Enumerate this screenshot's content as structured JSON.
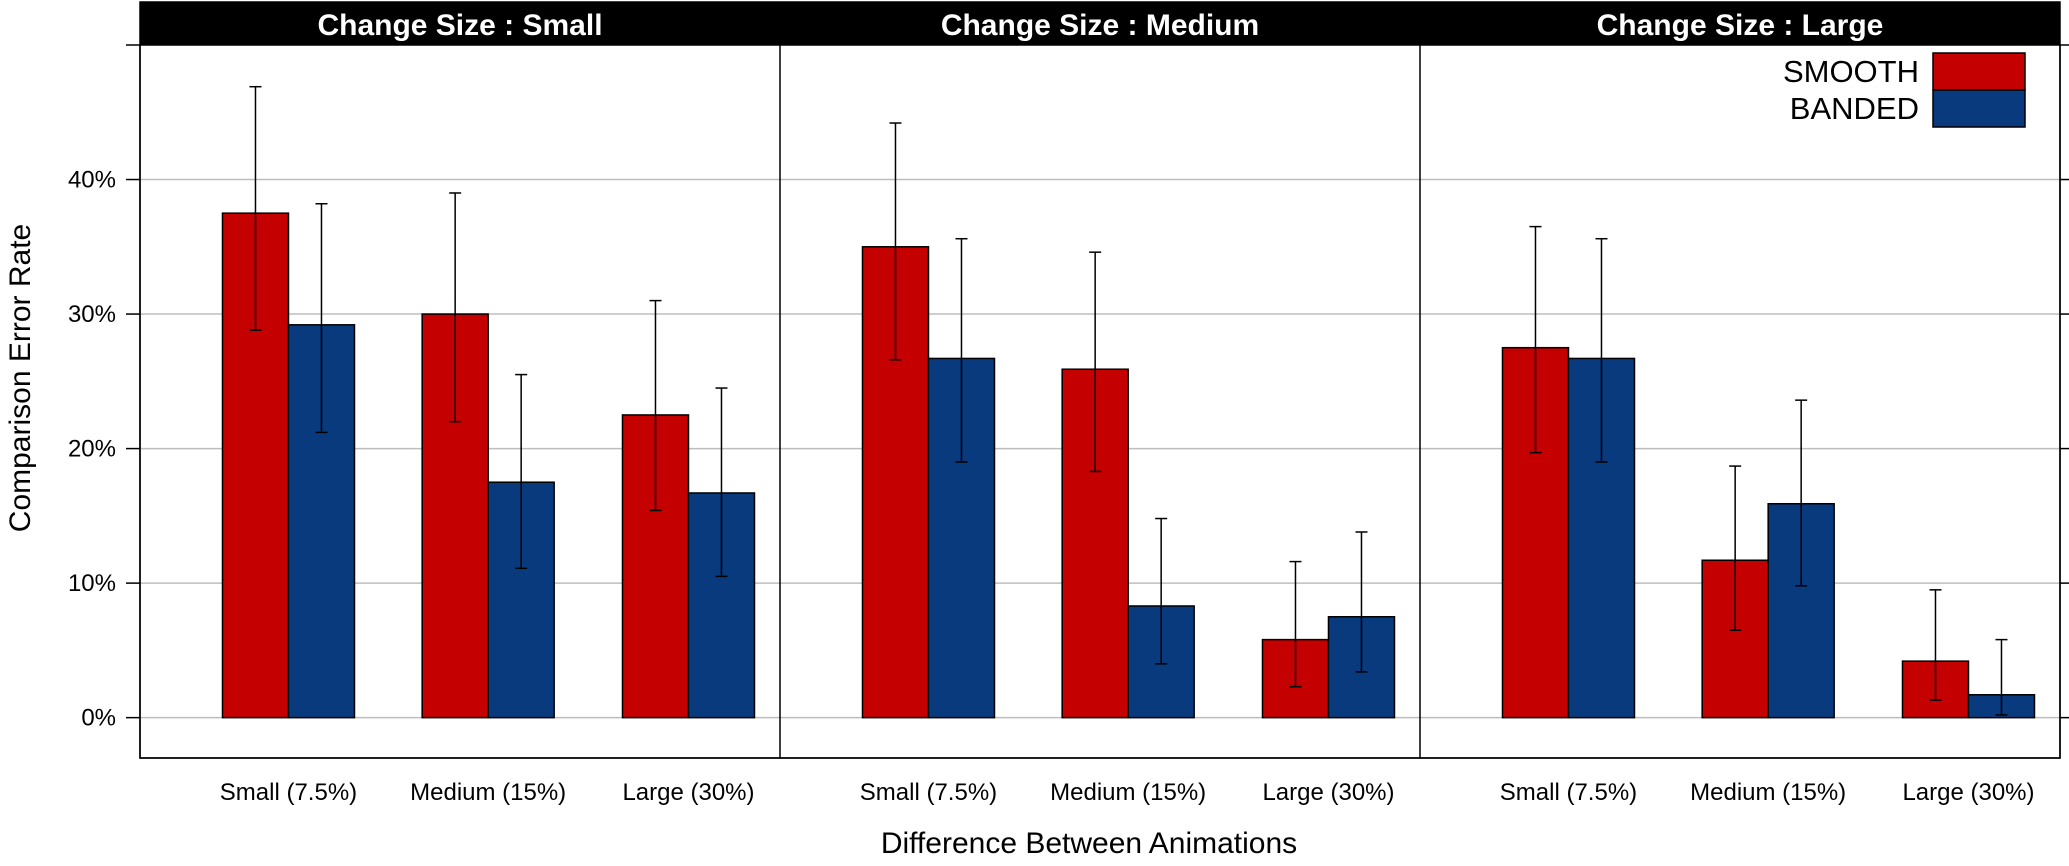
{
  "chart_data": {
    "type": "bar",
    "xlabel": "Difference Between Animations",
    "ylabel": "Comparison Error Rate",
    "ylim": [
      -0.03,
      0.5
    ],
    "yticks": [
      0,
      0.1,
      0.2,
      0.3,
      0.4
    ],
    "ytick_labels": [
      "0%",
      "10%",
      "20%",
      "30%",
      "40%"
    ],
    "grid": true,
    "legend": {
      "placement": "top-right",
      "entries": [
        "SMOOTH",
        "BANDED"
      ]
    },
    "categories": [
      "Small (7.5%)",
      "Medium (15%)",
      "Large (30%)"
    ],
    "colors": {
      "SMOOTH": "#c40000",
      "BANDED": "#0a3a7e"
    },
    "panels": [
      {
        "title": "Change Size : Small",
        "series": [
          {
            "name": "SMOOTH",
            "values": [
              0.375,
              0.3,
              0.225
            ],
            "err_low": [
              0.288,
              0.22,
              0.154
            ],
            "err_high": [
              0.469,
              0.39,
              0.31
            ]
          },
          {
            "name": "BANDED",
            "values": [
              0.292,
              0.175,
              0.167
            ],
            "err_low": [
              0.212,
              0.111,
              0.105
            ],
            "err_high": [
              0.382,
              0.255,
              0.245
            ]
          }
        ]
      },
      {
        "title": "Change Size : Medium",
        "series": [
          {
            "name": "SMOOTH",
            "values": [
              0.35,
              0.259,
              0.058
            ],
            "err_low": [
              0.266,
              0.183,
              0.023
            ],
            "err_high": [
              0.442,
              0.346,
              0.116
            ]
          },
          {
            "name": "BANDED",
            "values": [
              0.267,
              0.083,
              0.075
            ],
            "err_low": [
              0.19,
              0.04,
              0.034
            ],
            "err_high": [
              0.356,
              0.148,
              0.138
            ]
          }
        ]
      },
      {
        "title": "Change Size : Large",
        "series": [
          {
            "name": "SMOOTH",
            "values": [
              0.275,
              0.117,
              0.042
            ],
            "err_low": [
              0.197,
              0.065,
              0.013
            ],
            "err_high": [
              0.365,
              0.187,
              0.095
            ]
          },
          {
            "name": "BANDED",
            "values": [
              0.267,
              0.159,
              0.017
            ],
            "err_low": [
              0.19,
              0.098,
              0.002
            ],
            "err_high": [
              0.356,
              0.236,
              0.058
            ]
          }
        ]
      }
    ]
  }
}
